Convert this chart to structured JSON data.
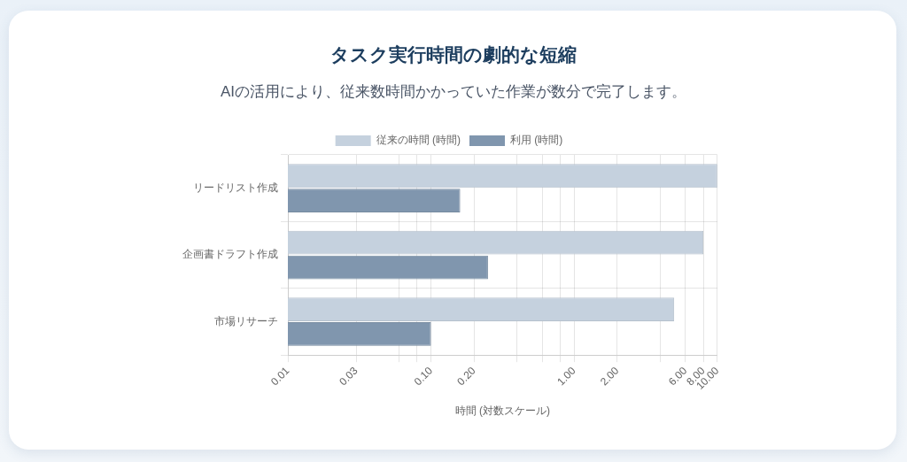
{
  "chart_data": {
    "type": "bar",
    "orientation": "horizontal",
    "title": "タスク実行時間の劇的な短縮",
    "subtitle": "AIの活用により、従来数時間かかっていた作業が数分で完了します。",
    "xlabel": "時間 (対数スケール)",
    "categories": [
      "リードリスト作成",
      "企画書ドラフト作成",
      "市場リサーチ"
    ],
    "series": [
      {
        "name": "従来の時間 (時間)",
        "color": "#c5d1de",
        "values": [
          10,
          8,
          5
        ]
      },
      {
        "name": "利用 (時間)",
        "color": "#8096ae",
        "values": [
          0.16,
          0.25,
          0.1
        ]
      }
    ],
    "log": "x",
    "xlim": [
      0.01,
      10
    ],
    "xticks": [
      0.01,
      0.03,
      {
        "value": 0.06,
        "label": null
      },
      {
        "value": 0.08,
        "label": null
      },
      {
        "value": 0.1,
        "label": "0.10"
      },
      {
        "value": 0.2,
        "label": "0.20"
      },
      {
        "value": 0.4,
        "label": null
      },
      {
        "value": 0.6,
        "label": null
      },
      {
        "value": 0.8,
        "label": null
      },
      {
        "value": 1,
        "label": "1.00"
      },
      {
        "value": 2,
        "label": "2.00"
      },
      {
        "value": 4,
        "label": null
      },
      {
        "value": 6,
        "label": "6.00"
      },
      {
        "value": 8,
        "label": "8.00"
      },
      {
        "value": 10,
        "label": "10.00"
      }
    ],
    "grid": true,
    "legend": "top"
  }
}
